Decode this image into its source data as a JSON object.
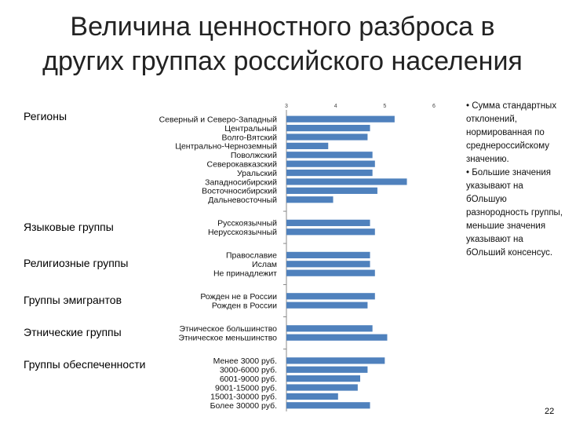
{
  "title": {
    "line1": "Величина ценностного разброса в",
    "line2": "других группах российского населения"
  },
  "notes": [
    "• Сумма стандартных отклонений, нормированная по среднероссийскому значению.",
    "• Большие значения указывают на бОльшую разнородность группы, меньшие значения указывают на бОльший консенсус."
  ],
  "page_number": "22",
  "chart_data": {
    "type": "bar",
    "orientation": "horizontal",
    "title": "",
    "xlabel": "",
    "ylabel": "",
    "xlim": [
      3,
      6
    ],
    "x_ticks": [
      3,
      4,
      5,
      6
    ],
    "bar_color": "#4f81bd",
    "grid": false,
    "groups": [
      {
        "name": "Регионы",
        "categories": [
          "Северный и Северо-Западный",
          "Центральный",
          "Волго-Вятский",
          "Центрально-Черноземный",
          "Поволжский",
          "Северокавказский",
          "Уральский",
          "Западносибирский",
          "Восточносибирский",
          "Дальневосточный"
        ],
        "values": [
          5.2,
          4.7,
          4.65,
          3.85,
          4.75,
          4.8,
          4.75,
          5.45,
          4.85,
          3.95
        ]
      },
      {
        "name": "Языковые группы",
        "categories": [
          "Русскоязычный",
          "Нерусскоязычный"
        ],
        "values": [
          4.7,
          4.8
        ]
      },
      {
        "name": "Религиозные группы",
        "categories": [
          "Православие",
          "Ислам",
          "Не принадлежит"
        ],
        "values": [
          4.7,
          4.7,
          4.8
        ]
      },
      {
        "name": "Группы эмигрантов",
        "categories": [
          "Рожден не в России",
          "Рожден в России"
        ],
        "values": [
          4.8,
          4.65
        ]
      },
      {
        "name": "Этнические группы",
        "categories": [
          "Этническое большинство",
          "Этническое меньшинство"
        ],
        "values": [
          4.75,
          5.05
        ]
      },
      {
        "name": "Группы обеспеченности",
        "categories": [
          "Менее 3000 руб.",
          "3000-6000 руб.",
          "6001-9000 руб.",
          "9001-15000 руб.",
          "15001-30000 руб.",
          "Более 30000 руб."
        ],
        "values": [
          5.0,
          4.65,
          4.5,
          4.45,
          4.05,
          4.7
        ]
      }
    ]
  }
}
